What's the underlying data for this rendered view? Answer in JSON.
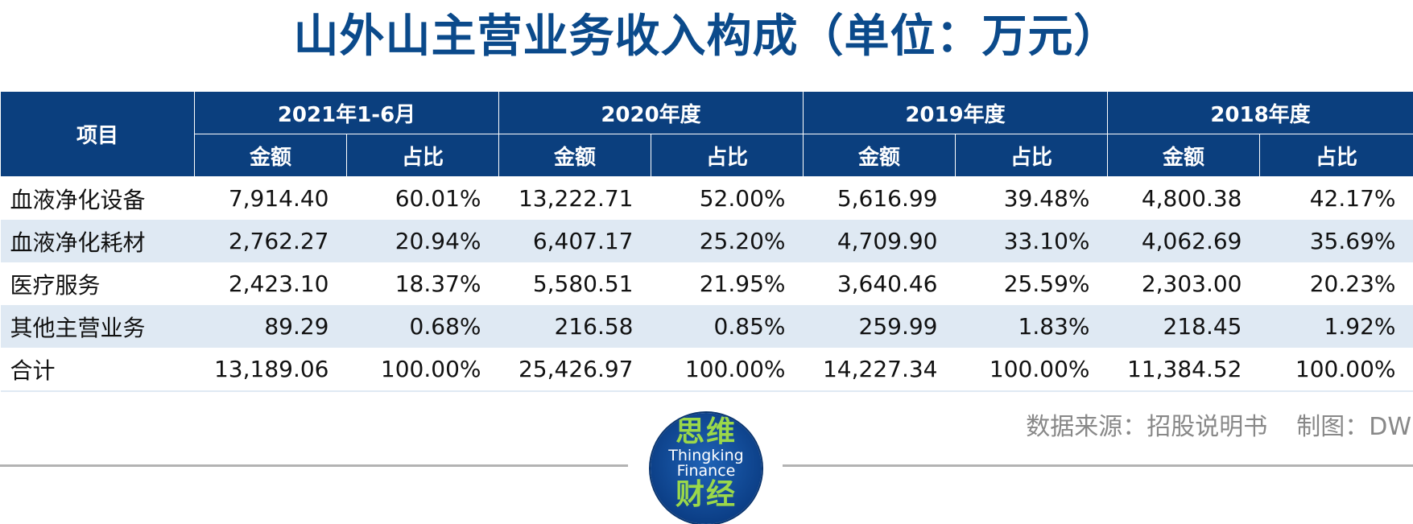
{
  "title": "山外山主营业务收入构成（单位：万元）",
  "table": {
    "item_header": "项目",
    "periods": [
      "2021年1-6月",
      "2020年度",
      "2019年度",
      "2018年度"
    ],
    "sub_headers": [
      "金额",
      "占比"
    ],
    "rows": [
      {
        "item": "血液净化设备",
        "cells": [
          "7,914.40",
          "60.01%",
          "13,222.71",
          "52.00%",
          "5,616.99",
          "39.48%",
          "4,800.38",
          "42.17%"
        ]
      },
      {
        "item": "血液净化耗材",
        "cells": [
          "2,762.27",
          "20.94%",
          "6,407.17",
          "25.20%",
          "4,709.90",
          "33.10%",
          "4,062.69",
          "35.69%"
        ]
      },
      {
        "item": "医疗服务",
        "cells": [
          "2,423.10",
          "18.37%",
          "5,580.51",
          "21.95%",
          "3,640.46",
          "25.59%",
          "2,303.00",
          "20.23%"
        ]
      },
      {
        "item": "其他主营业务",
        "cells": [
          "89.29",
          "0.68%",
          "216.58",
          "0.85%",
          "259.99",
          "1.83%",
          "218.45",
          "1.92%"
        ]
      },
      {
        "item": "合计",
        "cells": [
          "13,189.06",
          "100.00%",
          "25,426.97",
          "100.00%",
          "14,227.34",
          "100.00%",
          "11,384.52",
          "100.00%"
        ]
      }
    ]
  },
  "footer": {
    "source": "数据来源：招股说明书",
    "credit": "制图：DW"
  },
  "logo": {
    "zh_top": "思维",
    "en_line1": "Thingking",
    "en_line2": "Finance",
    "zh_bottom": "财经"
  },
  "colors": {
    "title": "#0b4a8b",
    "header_bg": "#0b3f7e",
    "stripe": "#dfe9f3",
    "logo_green": "#9bd84a"
  }
}
